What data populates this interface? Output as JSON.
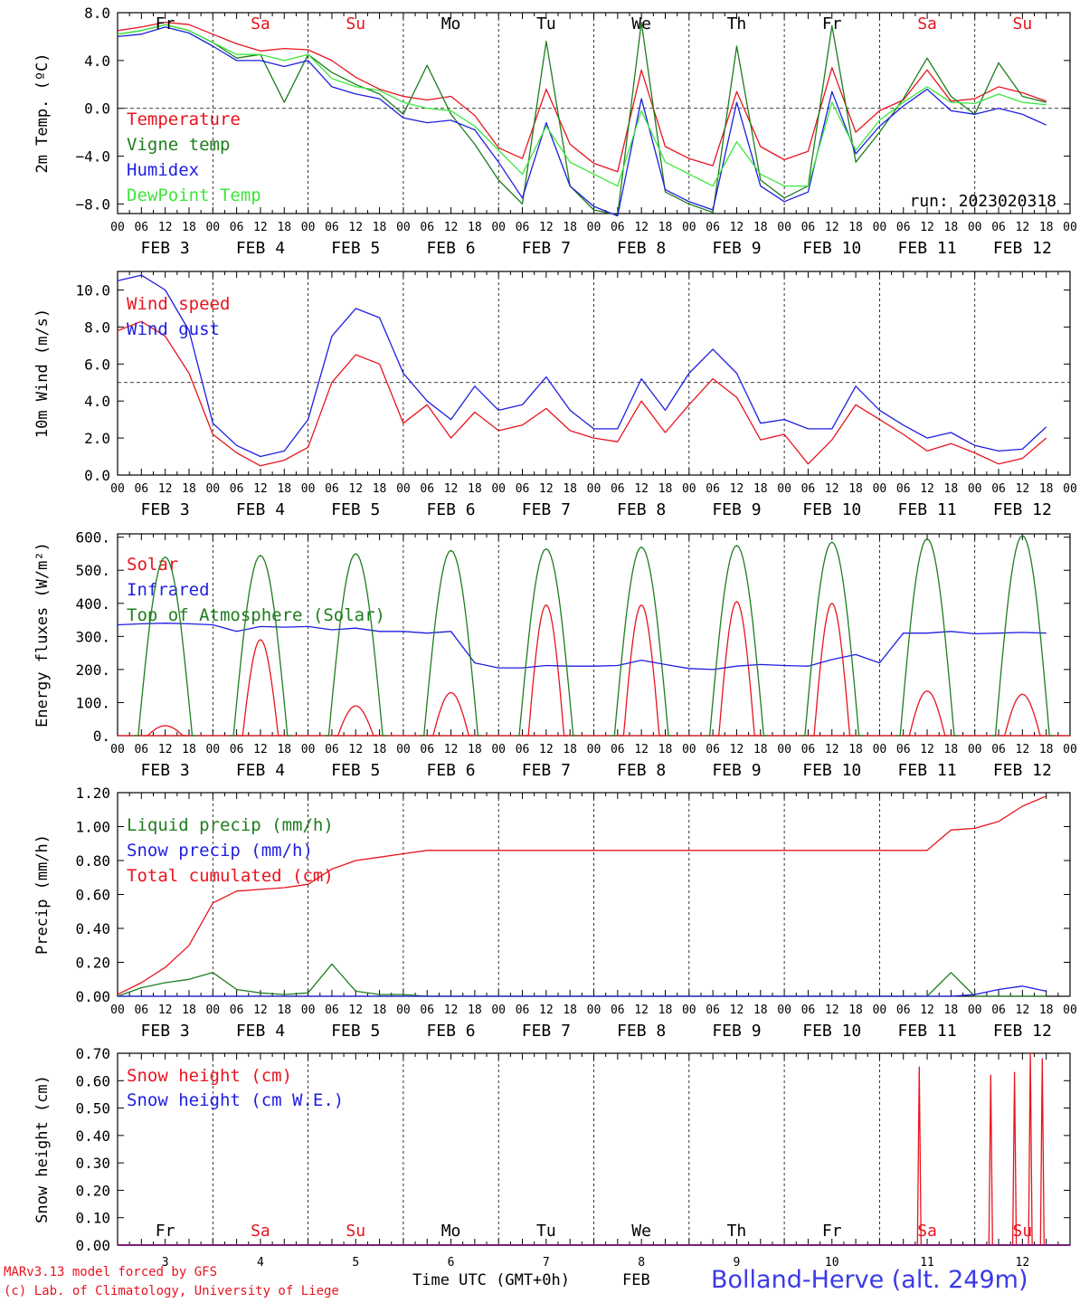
{
  "footer": {
    "model": "MARv3.13 model forced by GFS",
    "lab": "(c) Lab. of Climatology, University of Liege",
    "time_label": "Time UTC (GMT+0h)",
    "month": "FEB",
    "station": "Bolland-Herve (alt. 249m)"
  },
  "colors": {
    "red": "#e8141e",
    "darkgreen": "#1e7d1e",
    "blue": "#1e1ee0",
    "lightgreen": "#3ce63c",
    "weekend": "#e8141e",
    "weekday": "#000000"
  },
  "days": [
    {
      "name": "Fr",
      "date": "FEB  3",
      "num": "3",
      "weekend": false
    },
    {
      "name": "Sa",
      "date": "FEB  4",
      "num": "4",
      "weekend": true
    },
    {
      "name": "Su",
      "date": "FEB  5",
      "num": "5",
      "weekend": true
    },
    {
      "name": "Mo",
      "date": "FEB  6",
      "num": "6",
      "weekend": false
    },
    {
      "name": "Tu",
      "date": "FEB  7",
      "num": "7",
      "weekend": false
    },
    {
      "name": "We",
      "date": "FEB  8",
      "num": "8",
      "weekend": false
    },
    {
      "name": "Th",
      "date": "FEB  9",
      "num": "9",
      "weekend": false
    },
    {
      "name": "Fr",
      "date": "FEB 10",
      "num": "10",
      "weekend": false
    },
    {
      "name": "Sa",
      "date": "FEB 11",
      "num": "11",
      "weekend": true
    },
    {
      "name": "Su",
      "date": "FEB 12",
      "num": "12",
      "weekend": true
    }
  ],
  "hour_ticks": [
    "00",
    "06",
    "12",
    "18"
  ],
  "chart_data": [
    {
      "type": "line",
      "ylabel": "2m Temp. (ºC)",
      "ylim": [
        -8.8,
        8.0
      ],
      "yticks": [
        "8.0",
        "4.0",
        "0.0",
        "−4.0",
        "−8.0"
      ],
      "ytick_values": [
        8,
        4,
        0,
        -4,
        -8
      ],
      "ref_line": 0,
      "annotation": "run: 2023020318",
      "x_unit": "hours since FEB 3 00 UTC",
      "series": [
        {
          "name": "Temperature",
          "color": "red",
          "x": [
            0,
            6,
            12,
            18,
            24,
            30,
            36,
            42,
            48,
            54,
            60,
            66,
            72,
            78,
            84,
            90,
            96,
            102,
            108,
            114,
            120,
            126,
            132,
            138,
            144,
            150,
            156,
            162,
            168,
            174,
            180,
            186,
            192,
            198,
            204,
            210,
            216,
            222,
            228,
            234
          ],
          "values": [
            6.5,
            6.8,
            7.2,
            7.0,
            6.2,
            5.4,
            4.8,
            5.0,
            4.9,
            4.0,
            2.6,
            1.6,
            1.0,
            0.7,
            1.0,
            -0.6,
            -3.3,
            -4.2,
            1.6,
            -3.0,
            -4.6,
            -5.3,
            3.2,
            -3.2,
            -4.2,
            -4.8,
            1.4,
            -3.2,
            -4.3,
            -3.6,
            3.4,
            -2.0,
            -0.2,
            0.7,
            3.2,
            0.6,
            0.8,
            1.8,
            1.3,
            0.6
          ]
        },
        {
          "name": "Vigne temp",
          "color": "darkgreen",
          "x": [
            0,
            6,
            12,
            18,
            24,
            30,
            36,
            42,
            48,
            54,
            60,
            66,
            72,
            78,
            84,
            90,
            96,
            102,
            108,
            114,
            120,
            126,
            132,
            138,
            144,
            150,
            156,
            162,
            168,
            174,
            180,
            186,
            192,
            198,
            204,
            210,
            216,
            222,
            228,
            234
          ],
          "values": [
            6.2,
            6.5,
            7.0,
            6.5,
            5.5,
            4.2,
            4.5,
            0.5,
            4.5,
            3.0,
            2.0,
            1.2,
            -0.5,
            3.6,
            -0.5,
            -3.0,
            -6.0,
            -8.0,
            5.6,
            -6.5,
            -8.5,
            -8.9,
            7.2,
            -7.0,
            -8.0,
            -8.7,
            5.2,
            -6.0,
            -7.5,
            -6.5,
            6.9,
            -4.5,
            -2.0,
            0.8,
            4.2,
            1.0,
            -0.5,
            3.8,
            1.0,
            0.5
          ]
        },
        {
          "name": "Humidex",
          "color": "blue",
          "x": [
            0,
            6,
            12,
            18,
            24,
            30,
            36,
            42,
            48,
            54,
            60,
            66,
            72,
            78,
            84,
            90,
            96,
            102,
            108,
            114,
            120,
            126,
            132,
            138,
            144,
            150,
            156,
            162,
            168,
            174,
            180,
            186,
            192,
            198,
            204,
            210,
            216,
            222,
            228,
            234
          ],
          "values": [
            6.0,
            6.2,
            6.8,
            6.3,
            5.2,
            4.0,
            4.0,
            3.5,
            4.0,
            1.8,
            1.2,
            0.8,
            -0.8,
            -1.2,
            -1.0,
            -1.8,
            -4.5,
            -7.5,
            -1.2,
            -6.5,
            -8.2,
            -9.0,
            0.8,
            -6.8,
            -7.8,
            -8.5,
            0.5,
            -6.5,
            -7.8,
            -7.0,
            1.4,
            -3.8,
            -1.5,
            0.2,
            1.6,
            -0.2,
            -0.5,
            0.0,
            -0.5,
            -1.4
          ]
        },
        {
          "name": "DewPoint Temp",
          "color": "lightgreen",
          "x": [
            0,
            6,
            12,
            18,
            24,
            30,
            36,
            42,
            48,
            54,
            60,
            66,
            72,
            78,
            84,
            90,
            96,
            102,
            108,
            114,
            120,
            126,
            132,
            138,
            144,
            150,
            156,
            162,
            168,
            174,
            180,
            186,
            192,
            198,
            204,
            210,
            216,
            222,
            228,
            234
          ],
          "values": [
            6.2,
            6.5,
            7.0,
            6.5,
            5.5,
            4.5,
            4.5,
            4.0,
            4.5,
            2.5,
            1.8,
            1.5,
            0.5,
            0.0,
            -0.2,
            -1.5,
            -3.5,
            -5.5,
            -1.5,
            -4.5,
            -5.5,
            -6.5,
            -0.2,
            -4.5,
            -5.5,
            -6.5,
            -2.8,
            -5.5,
            -6.5,
            -6.5,
            0.5,
            -3.5,
            -1.0,
            0.5,
            1.8,
            0.5,
            0.4,
            1.2,
            0.5,
            0.3
          ]
        }
      ]
    },
    {
      "type": "line",
      "ylabel": "10m Wind (m/s)",
      "ylim": [
        0,
        11.0
      ],
      "yticks": [
        "10.0",
        "8.0",
        "6.0",
        "4.0",
        "2.0",
        "0.0"
      ],
      "ytick_values": [
        10,
        8,
        6,
        4,
        2,
        0
      ],
      "ref_line": 5,
      "x_unit": "hours since FEB 3 00 UTC",
      "series": [
        {
          "name": "Wind speed",
          "color": "red",
          "x": [
            0,
            6,
            12,
            18,
            24,
            30,
            36,
            42,
            48,
            54,
            60,
            66,
            72,
            78,
            84,
            90,
            96,
            102,
            108,
            114,
            120,
            126,
            132,
            138,
            144,
            150,
            156,
            162,
            168,
            174,
            180,
            186,
            192,
            198,
            204,
            210,
            216,
            222,
            228,
            234
          ],
          "values": [
            7.8,
            8.3,
            7.5,
            5.5,
            2.2,
            1.2,
            0.5,
            0.8,
            1.5,
            5.0,
            6.5,
            6.0,
            2.8,
            3.8,
            2.0,
            3.4,
            2.4,
            2.7,
            3.6,
            2.4,
            2.0,
            1.8,
            4.0,
            2.3,
            3.8,
            5.2,
            4.2,
            1.9,
            2.2,
            0.6,
            1.9,
            3.8,
            3.0,
            2.2,
            1.3,
            1.7,
            1.2,
            0.6,
            0.9,
            2.0
          ]
        },
        {
          "name": "Wind gust",
          "color": "blue",
          "x": [
            0,
            6,
            12,
            18,
            24,
            30,
            36,
            42,
            48,
            54,
            60,
            66,
            72,
            78,
            84,
            90,
            96,
            102,
            108,
            114,
            120,
            126,
            132,
            138,
            144,
            150,
            156,
            162,
            168,
            174,
            180,
            186,
            192,
            198,
            204,
            210,
            216,
            222,
            228,
            234
          ],
          "values": [
            10.5,
            10.8,
            10.0,
            7.8,
            2.8,
            1.6,
            1.0,
            1.3,
            3.0,
            7.5,
            9.0,
            8.5,
            5.5,
            4.0,
            3.0,
            4.8,
            3.5,
            3.8,
            5.3,
            3.5,
            2.5,
            2.5,
            5.2,
            3.5,
            5.5,
            6.8,
            5.5,
            2.8,
            3.0,
            2.5,
            2.5,
            4.8,
            3.5,
            2.7,
            2.0,
            2.3,
            1.6,
            1.3,
            1.4,
            2.6
          ]
        }
      ]
    },
    {
      "type": "line",
      "ylabel": "Energy fluxes (W/m²)",
      "ylim": [
        0,
        610
      ],
      "yticks": [
        "600.",
        "500.",
        "400.",
        "300.",
        "200.",
        "100.",
        "0."
      ],
      "ytick_values": [
        600,
        500,
        400,
        300,
        200,
        100,
        0
      ],
      "x_unit": "hours since FEB 3 00 UTC",
      "series": [
        {
          "name": "Solar",
          "color": "red",
          "peak_hour": 12,
          "half_width": 4.5,
          "values": [
            30,
            290,
            90,
            130,
            395,
            395,
            405,
            400,
            135,
            125
          ]
        },
        {
          "name": "Infrared",
          "color": "blue",
          "x": [
            0,
            6,
            12,
            18,
            24,
            30,
            36,
            42,
            48,
            54,
            60,
            66,
            72,
            78,
            84,
            90,
            96,
            102,
            108,
            114,
            120,
            126,
            132,
            138,
            144,
            150,
            156,
            162,
            168,
            174,
            180,
            186,
            192,
            198,
            204,
            210,
            216,
            222,
            228,
            234
          ],
          "values": [
            335,
            338,
            340,
            338,
            335,
            315,
            330,
            328,
            330,
            320,
            325,
            315,
            315,
            310,
            315,
            220,
            205,
            205,
            212,
            210,
            210,
            212,
            228,
            215,
            203,
            200,
            210,
            215,
            212,
            210,
            230,
            245,
            220,
            310,
            310,
            315,
            308,
            310,
            312,
            310
          ]
        },
        {
          "name": "Top of Atmosphere (Solar)",
          "color": "darkgreen",
          "peak_hour": 12,
          "half_width": 6.8,
          "values": [
            540,
            545,
            550,
            560,
            565,
            570,
            575,
            585,
            595,
            605
          ]
        }
      ]
    },
    {
      "type": "line",
      "ylabel": "Precip (mm/h)",
      "ylim": [
        0,
        1.2
      ],
      "yticks": [
        "1.20",
        "1.00",
        "0.80",
        "0.60",
        "0.40",
        "0.20",
        "0.00"
      ],
      "ytick_values": [
        1.2,
        1.0,
        0.8,
        0.6,
        0.4,
        0.2,
        0.0
      ],
      "x_unit": "hours since FEB 3 00 UTC",
      "series": [
        {
          "name": "Liquid precip (mm/h)",
          "color": "darkgreen",
          "x": [
            0,
            6,
            12,
            18,
            24,
            30,
            36,
            42,
            48,
            54,
            60,
            66,
            72,
            78,
            84,
            90,
            96,
            102,
            108,
            114,
            120,
            126,
            132,
            138,
            144,
            150,
            156,
            162,
            168,
            174,
            180,
            186,
            192,
            198,
            204,
            210,
            216,
            222,
            228,
            234
          ],
          "values": [
            0.0,
            0.05,
            0.08,
            0.1,
            0.14,
            0.04,
            0.02,
            0.01,
            0.02,
            0.19,
            0.03,
            0.01,
            0.01,
            0.0,
            0.0,
            0.0,
            0.0,
            0.0,
            0.0,
            0.0,
            0.0,
            0.0,
            0.0,
            0.0,
            0.0,
            0.0,
            0.0,
            0.0,
            0.0,
            0.0,
            0.0,
            0.0,
            0.0,
            0.0,
            0.0,
            0.14,
            0.0,
            0.0,
            0.0,
            0.0
          ]
        },
        {
          "name": "Snow precip (mm/h)",
          "color": "blue",
          "x": [
            0,
            6,
            12,
            18,
            24,
            30,
            36,
            42,
            48,
            54,
            60,
            66,
            72,
            78,
            84,
            90,
            96,
            102,
            108,
            114,
            120,
            126,
            132,
            138,
            144,
            150,
            156,
            162,
            168,
            174,
            180,
            186,
            192,
            198,
            204,
            210,
            216,
            222,
            228,
            234
          ],
          "values": [
            0,
            0,
            0,
            0,
            0,
            0,
            0,
            0,
            0,
            0,
            0,
            0,
            0,
            0,
            0,
            0,
            0,
            0,
            0,
            0,
            0,
            0,
            0,
            0,
            0,
            0,
            0,
            0,
            0,
            0,
            0,
            0,
            0,
            0,
            0,
            0,
            0.01,
            0.04,
            0.06,
            0.03
          ]
        },
        {
          "name": "Total cumulated (cm)",
          "color": "red",
          "x": [
            0,
            6,
            12,
            18,
            24,
            30,
            36,
            42,
            48,
            54,
            60,
            66,
            72,
            78,
            84,
            90,
            96,
            102,
            108,
            114,
            120,
            126,
            132,
            138,
            144,
            150,
            156,
            162,
            168,
            174,
            180,
            186,
            192,
            198,
            204,
            210,
            216,
            222,
            228,
            234
          ],
          "values": [
            0.01,
            0.08,
            0.17,
            0.3,
            0.55,
            0.62,
            0.63,
            0.64,
            0.66,
            0.75,
            0.8,
            0.82,
            0.84,
            0.86,
            0.86,
            0.86,
            0.86,
            0.86,
            0.86,
            0.86,
            0.86,
            0.86,
            0.86,
            0.86,
            0.86,
            0.86,
            0.86,
            0.86,
            0.86,
            0.86,
            0.86,
            0.86,
            0.86,
            0.86,
            0.86,
            0.98,
            0.99,
            1.03,
            1.12,
            1.18
          ]
        }
      ]
    },
    {
      "type": "line",
      "ylabel": "Snow height (cm)",
      "ylim": [
        0,
        0.7
      ],
      "yticks": [
        "0.70",
        "0.60",
        "0.50",
        "0.40",
        "0.30",
        "0.20",
        "0.10",
        "0.00"
      ],
      "ytick_values": [
        0.7,
        0.6,
        0.5,
        0.4,
        0.3,
        0.2,
        0.1,
        0.0
      ],
      "x_unit": "hours since FEB 3 00 UTC",
      "series": [
        {
          "name": "Snow height (cm)",
          "color": "red",
          "spikes": [
            {
              "x": 202,
              "y": 0.65
            },
            {
              "x": 220,
              "y": 0.62
            },
            {
              "x": 226,
              "y": 0.63
            },
            {
              "x": 230,
              "y": 0.7
            },
            {
              "x": 233,
              "y": 0.68
            }
          ]
        },
        {
          "name": "Snow height (cm W.E.)",
          "color": "blue",
          "spikes": []
        }
      ]
    }
  ]
}
